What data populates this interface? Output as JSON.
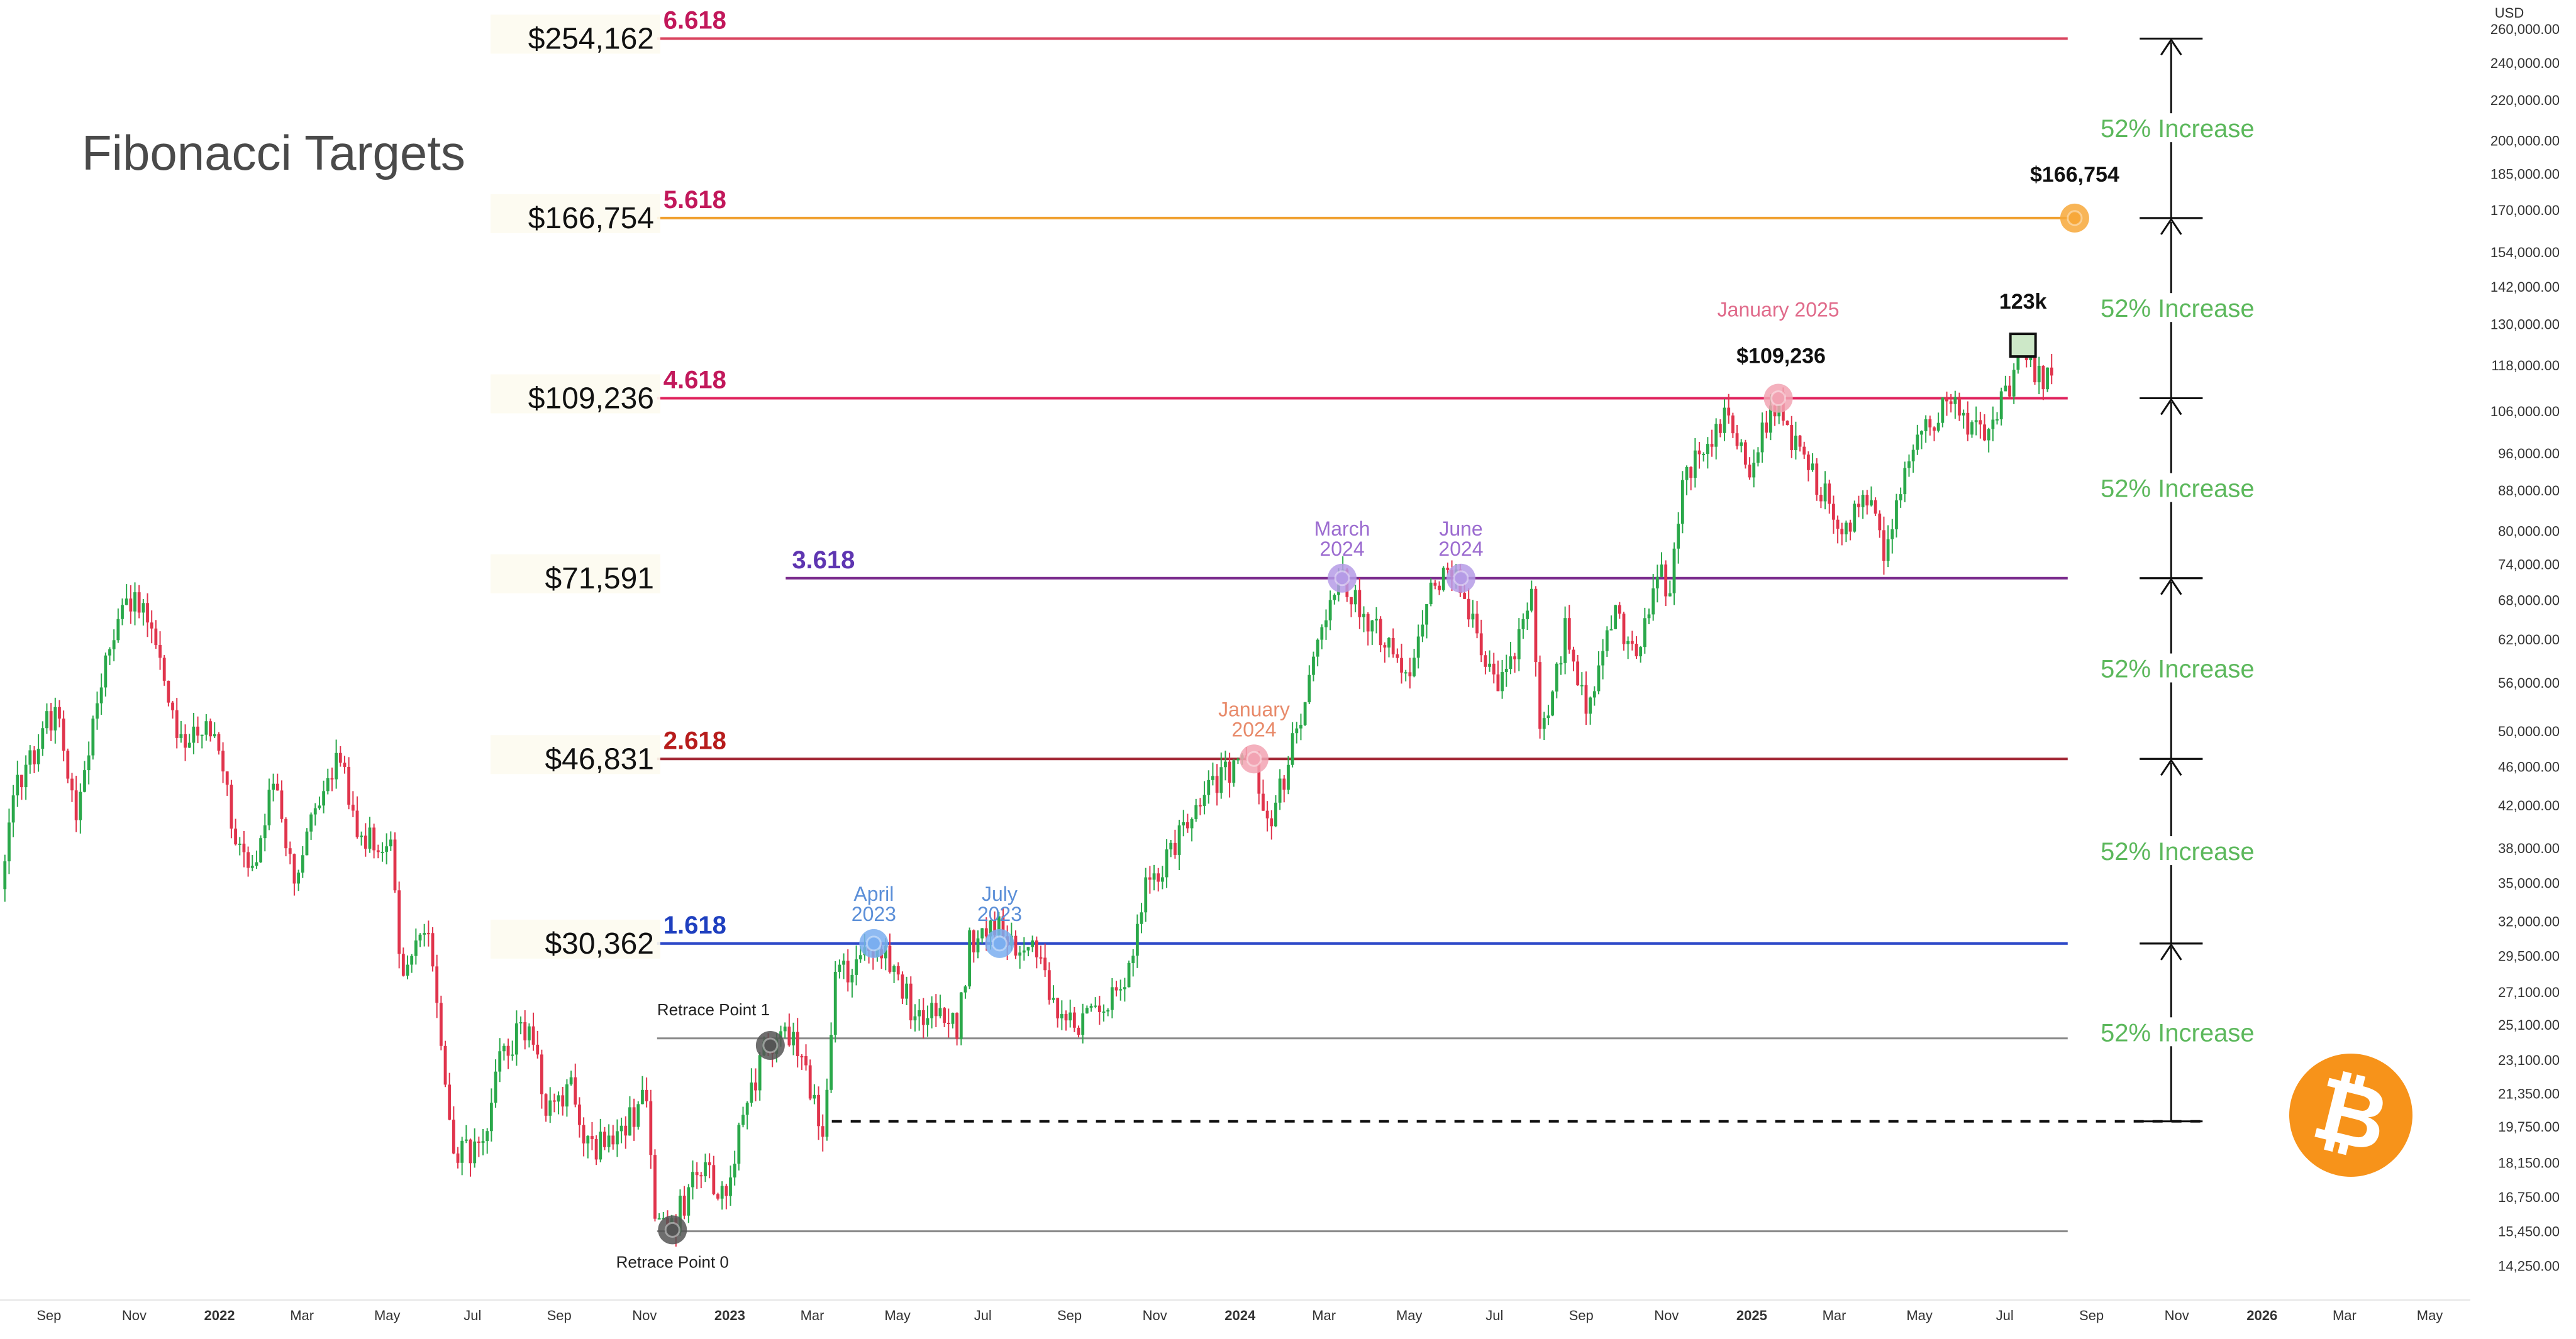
{
  "chart_data": {
    "type": "candlestick",
    "title": "Fibonacci Targets",
    "currency_label": "USD",
    "log_scale": true,
    "ylim": [
      13500,
      275000
    ],
    "xlim": [
      "2021-07-28",
      "2026-05-30"
    ],
    "y_ticks": [
      "260,000.00",
      "240,000.00",
      "220,000.00",
      "200,000.00",
      "185,000.00",
      "170,000.00",
      "154,000.00",
      "142,000.00",
      "130,000.00",
      "118,000.00",
      "106,000.00",
      "96,000.00",
      "88,000.00",
      "80,000.00",
      "74,000.00",
      "68,000.00",
      "62,000.00",
      "56,000.00",
      "50,000.00",
      "46,000.00",
      "42,000.00",
      "38,000.00",
      "35,000.00",
      "32,000.00",
      "29,500.00",
      "27,100.00",
      "25,100.00",
      "23,100.00",
      "21,350.00",
      "19,750.00",
      "18,150.00",
      "16,750.00",
      "15,450.00",
      "14,250.00"
    ],
    "x_ticks": [
      {
        "label": "Sep",
        "date": "2021-09-01",
        "bold": false
      },
      {
        "label": "Nov",
        "date": "2021-11-01",
        "bold": false
      },
      {
        "label": "2022",
        "date": "2022-01-01",
        "bold": true
      },
      {
        "label": "Mar",
        "date": "2022-03-01",
        "bold": false
      },
      {
        "label": "May",
        "date": "2022-05-01",
        "bold": false
      },
      {
        "label": "Jul",
        "date": "2022-07-01",
        "bold": false
      },
      {
        "label": "Sep",
        "date": "2022-09-01",
        "bold": false
      },
      {
        "label": "Nov",
        "date": "2022-11-01",
        "bold": false
      },
      {
        "label": "2023",
        "date": "2023-01-01",
        "bold": true
      },
      {
        "label": "Mar",
        "date": "2023-03-01",
        "bold": false
      },
      {
        "label": "May",
        "date": "2023-05-01",
        "bold": false
      },
      {
        "label": "Jul",
        "date": "2023-07-01",
        "bold": false
      },
      {
        "label": "Sep",
        "date": "2023-09-01",
        "bold": false
      },
      {
        "label": "Nov",
        "date": "2023-11-01",
        "bold": false
      },
      {
        "label": "2024",
        "date": "2024-01-01",
        "bold": true
      },
      {
        "label": "Mar",
        "date": "2024-03-01",
        "bold": false
      },
      {
        "label": "May",
        "date": "2024-05-01",
        "bold": false
      },
      {
        "label": "Jul",
        "date": "2024-07-01",
        "bold": false
      },
      {
        "label": "Sep",
        "date": "2024-09-01",
        "bold": false
      },
      {
        "label": "Nov",
        "date": "2024-11-01",
        "bold": false
      },
      {
        "label": "2025",
        "date": "2025-01-01",
        "bold": true
      },
      {
        "label": "Mar",
        "date": "2025-03-01",
        "bold": false
      },
      {
        "label": "May",
        "date": "2025-05-01",
        "bold": false
      },
      {
        "label": "Jul",
        "date": "2025-07-01",
        "bold": false
      },
      {
        "label": "Sep",
        "date": "2025-09-01",
        "bold": false
      },
      {
        "label": "Nov",
        "date": "2025-11-01",
        "bold": false
      },
      {
        "label": "2026",
        "date": "2026-01-01",
        "bold": true
      },
      {
        "label": "Mar",
        "date": "2026-03-01",
        "bold": false
      },
      {
        "label": "May",
        "date": "2026-05-01",
        "bold": false
      }
    ],
    "fib_levels": [
      {
        "ratio": "6.618",
        "price_label": "$254,162",
        "value": 254162,
        "color": "#c2185b",
        "line_color": "#d9455f",
        "start": "2022-11-10"
      },
      {
        "ratio": "5.618",
        "price_label": "$166,754",
        "value": 166754,
        "color": "#c2185b",
        "line_color": "#f0a030",
        "start": "2022-11-10"
      },
      {
        "ratio": "4.618",
        "price_label": "$109,236",
        "value": 109236,
        "color": "#c2185b",
        "line_color": "#e0245e",
        "start": "2022-11-10"
      },
      {
        "ratio": "3.618",
        "price_label": "$71,591",
        "value": 71591,
        "color": "#5e35b1",
        "line_color": "#7b2d8e",
        "start": "2023-02-10"
      },
      {
        "ratio": "2.618",
        "price_label": "$46,831",
        "value": 46831,
        "color": "#b71c1c",
        "line_color": "#a32936",
        "start": "2022-11-10"
      },
      {
        "ratio": "1.618",
        "price_label": "$30,362",
        "value": 30362,
        "color": "#1e3fbf",
        "line_color": "#2e49c8",
        "start": "2022-11-10"
      }
    ],
    "end_date": "2025-08-15",
    "retrace_lines": [
      {
        "value": 24300,
        "start": "2022-11-10"
      },
      {
        "value": 15450,
        "start": "2022-11-10"
      }
    ],
    "dashed_line": {
      "value": 20000,
      "start": "2023-03-15",
      "end": "2025-11-20"
    },
    "increase_labels": [
      {
        "text": "52% Increase",
        "low": 20000,
        "high": 30362
      },
      {
        "text": "52% Increase",
        "low": 30362,
        "high": 46831
      },
      {
        "text": "52% Increase",
        "low": 46831,
        "high": 71591
      },
      {
        "text": "52% Increase",
        "low": 71591,
        "high": 109236
      },
      {
        "text": "52% Increase",
        "low": 109236,
        "high": 166754
      },
      {
        "text": "52% Increase",
        "low": 166754,
        "high": 254162
      }
    ],
    "arrow_x_date": "2025-10-28",
    "markers": [
      {
        "date": "2022-11-21",
        "value": 15500,
        "color": "#555555",
        "label": "Retrace Point 0",
        "label_pos": "below",
        "label_color": "#222222"
      },
      {
        "date": "2023-01-30",
        "value": 23900,
        "color": "#555555",
        "label": "Retrace Point 1",
        "label_pos": "above-left",
        "label_color": "#222222"
      },
      {
        "date": "2023-04-14",
        "value": 30362,
        "color": "#7aaef0",
        "label": "April\n2023",
        "label_pos": "above",
        "label_color": "#5b8fd8"
      },
      {
        "date": "2023-07-13",
        "value": 30362,
        "color": "#7aaef0",
        "label": "July\n2023",
        "label_pos": "above",
        "label_color": "#5b8fd8"
      },
      {
        "date": "2024-01-11",
        "value": 46831,
        "color": "#f2a3b3",
        "label": "January\n2024",
        "label_pos": "above",
        "label_color": "#e88a6a"
      },
      {
        "date": "2024-03-14",
        "value": 71591,
        "color": "#b59be6",
        "label": "March\n2024",
        "label_pos": "above",
        "label_color": "#9c6cd0"
      },
      {
        "date": "2024-06-07",
        "value": 71591,
        "color": "#b59be6",
        "label": "June\n2024",
        "label_pos": "above",
        "label_color": "#9c6cd0"
      },
      {
        "date": "2025-01-20",
        "value": 109236,
        "color": "#f2a3b3",
        "label": "January 2025",
        "label_pos": "above-high",
        "label_color": "#e06a8a"
      },
      {
        "date": "2025-08-20",
        "value": 166754,
        "color": "#f7a83a",
        "label": "",
        "label_pos": "none",
        "label_color": "#000000"
      }
    ],
    "price_callouts": [
      {
        "text": "$109,236",
        "date": "2025-01-22",
        "value": 109236
      },
      {
        "text": "$166,754",
        "date": "2025-08-20",
        "value": 166754
      },
      {
        "text": "123k",
        "date": "2025-07-14",
        "value": 123000
      }
    ],
    "ath_box": {
      "date": "2025-07-14",
      "value": 123000
    },
    "anchor_points": [
      [
        "2021-07-30",
        34500
      ],
      [
        "2021-08-10",
        44000
      ],
      [
        "2021-08-25",
        48500
      ],
      [
        "2021-09-07",
        52500
      ],
      [
        "2021-09-21",
        41000
      ],
      [
        "2021-10-01",
        48000
      ],
      [
        "2021-10-20",
        65000
      ],
      [
        "2021-11-10",
        68500
      ],
      [
        "2021-11-26",
        55000
      ],
      [
        "2021-12-04",
        48000
      ],
      [
        "2021-12-27",
        50800
      ],
      [
        "2022-01-10",
        41500
      ],
      [
        "2022-01-24",
        35000
      ],
      [
        "2022-02-10",
        44500
      ],
      [
        "2022-02-24",
        35200
      ],
      [
        "2022-03-28",
        47500
      ],
      [
        "2022-04-11",
        39500
      ],
      [
        "2022-05-05",
        38000
      ],
      [
        "2022-05-12",
        28500
      ],
      [
        "2022-05-31",
        31800
      ],
      [
        "2022-06-18",
        18500
      ],
      [
        "2022-07-13",
        19000
      ],
      [
        "2022-07-20",
        23500
      ],
      [
        "2022-08-14",
        25000
      ],
      [
        "2022-08-26",
        20200
      ],
      [
        "2022-09-10",
        21800
      ],
      [
        "2022-09-20",
        18600
      ],
      [
        "2022-10-13",
        19100
      ],
      [
        "2022-11-05",
        21400
      ],
      [
        "2022-11-09",
        16000
      ],
      [
        "2022-11-21",
        15500
      ],
      [
        "2022-12-14",
        18000
      ],
      [
        "2022-12-31",
        16500
      ],
      [
        "2023-01-14",
        20800
      ],
      [
        "2023-01-30",
        23900
      ],
      [
        "2023-02-16",
        24800
      ],
      [
        "2023-03-10",
        19600
      ],
      [
        "2023-03-18",
        27500
      ],
      [
        "2023-04-14",
        30400
      ],
      [
        "2023-04-28",
        29300
      ],
      [
        "2023-05-12",
        26200
      ],
      [
        "2023-06-15",
        25000
      ],
      [
        "2023-06-23",
        30600
      ],
      [
        "2023-07-13",
        31400
      ],
      [
        "2023-08-15",
        29200
      ],
      [
        "2023-08-17",
        26000
      ],
      [
        "2023-09-11",
        25200
      ],
      [
        "2023-10-16",
        28300
      ],
      [
        "2023-10-25",
        34500
      ],
      [
        "2023-11-15",
        37800
      ],
      [
        "2023-12-08",
        44000
      ],
      [
        "2024-01-11",
        46800
      ],
      [
        "2024-01-23",
        39500
      ],
      [
        "2024-02-15",
        52000
      ],
      [
        "2024-03-05",
        66000
      ],
      [
        "2024-03-14",
        72800
      ],
      [
        "2024-04-01",
        65500
      ],
      [
        "2024-04-17",
        61000
      ],
      [
        "2024-05-01",
        57500
      ],
      [
        "2024-05-21",
        71000
      ],
      [
        "2024-06-07",
        71500
      ],
      [
        "2024-06-24",
        60000
      ],
      [
        "2024-07-05",
        54000
      ],
      [
        "2024-07-29",
        69500
      ],
      [
        "2024-08-05",
        49500
      ],
      [
        "2024-08-23",
        64000
      ],
      [
        "2024-09-06",
        53000
      ],
      [
        "2024-09-27",
        66000
      ],
      [
        "2024-10-10",
        59000
      ],
      [
        "2024-10-29",
        72500
      ],
      [
        "2024-11-05",
        68000
      ],
      [
        "2024-11-13",
        90000
      ],
      [
        "2024-12-05",
        100000
      ],
      [
        "2024-12-17",
        106000
      ],
      [
        "2024-12-30",
        92000
      ],
      [
        "2025-01-20",
        109200
      ],
      [
        "2025-02-03",
        97000
      ],
      [
        "2025-02-25",
        86000
      ],
      [
        "2025-03-10",
        78500
      ],
      [
        "2025-03-24",
        88000
      ],
      [
        "2025-04-08",
        76000
      ],
      [
        "2025-04-25",
        94000
      ],
      [
        "2025-05-22",
        110000
      ],
      [
        "2025-06-05",
        101500
      ],
      [
        "2025-06-22",
        99000
      ],
      [
        "2025-06-30",
        107500
      ],
      [
        "2025-07-10",
        117000
      ],
      [
        "2025-07-14",
        122500
      ],
      [
        "2025-07-25",
        116500
      ],
      [
        "2025-08-04",
        113500
      ]
    ]
  }
}
